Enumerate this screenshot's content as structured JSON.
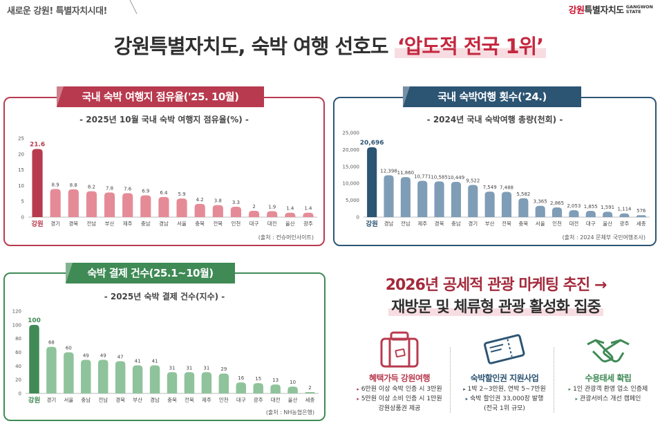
{
  "header": {
    "slogan": "새로운 강원! 특별자치시대!",
    "logo_ko_first": "강원",
    "logo_ko_rest": "특별자치도",
    "logo_en_line1": "GANGWON",
    "logo_en_line2": "STATE"
  },
  "main_title": {
    "prefix": "강원특별자치도, 숙박 여행 선호도",
    "highlight": "‘압도적 전국 1위’"
  },
  "colors": {
    "red": "#b83a4e",
    "red_light": "#e58b97",
    "blue": "#2c5473",
    "blue_light": "#7f9db6",
    "green": "#3f8a55",
    "green_light": "#8fc39b"
  },
  "panels": {
    "share": {
      "tab": "국내 숙박 여행지 점유율('25. 10월)",
      "subtitle": "- 2025년 10월 국내 숙박 여행지 점유율(%) -",
      "source": "(출처 : 컨슈머인사이트)"
    },
    "trips": {
      "tab": "국내 숙박여행 횟수('24.)",
      "subtitle": "- 2024년 국내 숙박여행 총량(천회) -",
      "source": "(출처 : 2024 문체부 국민여행조사)"
    },
    "payments": {
      "tab": "숙박 결제 건수(25.1~10월)",
      "subtitle": "- 2025년 숙박 결제 건수(지수) -",
      "source": "(출처 : NH농협은행)"
    }
  },
  "chart_data": [
    {
      "type": "bar",
      "categories": [
        "강원",
        "경기",
        "경북",
        "전남",
        "부산",
        "제주",
        "충남",
        "경남",
        "서울",
        "충북",
        "전북",
        "인천",
        "대구",
        "대전",
        "울산",
        "광주"
      ],
      "values": [
        21.6,
        8.9,
        8.8,
        8.2,
        7.8,
        7.6,
        6.9,
        6.4,
        5.9,
        4.2,
        3.8,
        3.3,
        2,
        1.9,
        1.4,
        1.4
      ],
      "value_labels": [
        "21.6",
        "8.9",
        "8.8",
        "8.2",
        "7.8",
        "7.6",
        "6.9",
        "6.4",
        "5.9",
        "4.2",
        "3.8",
        "3.3",
        "2",
        "1.9",
        "1.4",
        "1.4"
      ],
      "ylim": [
        0,
        25
      ],
      "yticks": [
        "0",
        "5",
        "10",
        "15",
        "20",
        "25"
      ],
      "highlight_index": 0,
      "xlabel": "",
      "ylabel": ""
    },
    {
      "type": "bar",
      "categories": [
        "강원",
        "경남",
        "전남",
        "제주",
        "경북",
        "충남",
        "경기",
        "부산",
        "전북",
        "충북",
        "서울",
        "인천",
        "대전",
        "대구",
        "울산",
        "광주",
        "세종"
      ],
      "values": [
        20696,
        12398,
        11860,
        10771,
        10585,
        10449,
        9522,
        7549,
        7488,
        5582,
        3365,
        2865,
        2053,
        1855,
        1591,
        1114,
        576
      ],
      "value_labels": [
        "20,696",
        "12,398",
        "11,860",
        "10,771",
        "10,585",
        "10,449",
        "9,522",
        "7,549",
        "7,488",
        "5,582",
        "3,365",
        "2,865",
        "2,053",
        "1,855",
        "1,591",
        "1,114",
        "576"
      ],
      "ylim": [
        0,
        25000
      ],
      "yticks": [
        "0",
        "5,000",
        "10,000",
        "15,000",
        "20,000",
        "25,000"
      ],
      "highlight_index": 0,
      "xlabel": "",
      "ylabel": ""
    },
    {
      "type": "bar",
      "categories": [
        "강원",
        "경기",
        "서울",
        "충남",
        "전남",
        "경북",
        "부산",
        "경남",
        "충북",
        "전북",
        "제주",
        "인천",
        "대구",
        "광주",
        "대전",
        "울산",
        "세종"
      ],
      "values": [
        100,
        68,
        60,
        49,
        49,
        47,
        41,
        41,
        31,
        31,
        31,
        29,
        16,
        15,
        13,
        10,
        2
      ],
      "value_labels": [
        "100",
        "68",
        "60",
        "49",
        "49",
        "47",
        "41",
        "41",
        "31",
        "31",
        "31",
        "29",
        "16",
        "15",
        "13",
        "10",
        "2"
      ],
      "ylim": [
        0,
        120
      ],
      "yticks": [
        "0",
        "20",
        "40",
        "60",
        "80",
        "100",
        "120"
      ],
      "highlight_index": 0,
      "xlabel": "",
      "ylabel": ""
    }
  ],
  "marketing": {
    "title_line1": "2026년 공세적 관광 마케팅 추진 →",
    "title_line2": "재방문 및 체류형 관광 활성화 집중",
    "columns": [
      {
        "icon": "luggage-icon",
        "title": "혜택가득 강원여행",
        "lines": [
          "6만원 이상 숙박 인증 시 3만원",
          "5만원 이상 소비 인증 시 1만원",
          "강원상품권 제공"
        ]
      },
      {
        "icon": "ticket-icon",
        "title": "숙박할인권 지원사업",
        "lines": [
          "1박 2~3만원, 연박 5~7만원",
          "숙박 할인권 33,000장 발행",
          "(전국 1위 규모)"
        ]
      },
      {
        "icon": "handshake-icon",
        "title": "수용태세 확립",
        "lines": [
          "1인 관광객 환영 업소 인증제",
          "관광서비스 개선 캠페인"
        ]
      }
    ],
    "bullet": "▸"
  }
}
